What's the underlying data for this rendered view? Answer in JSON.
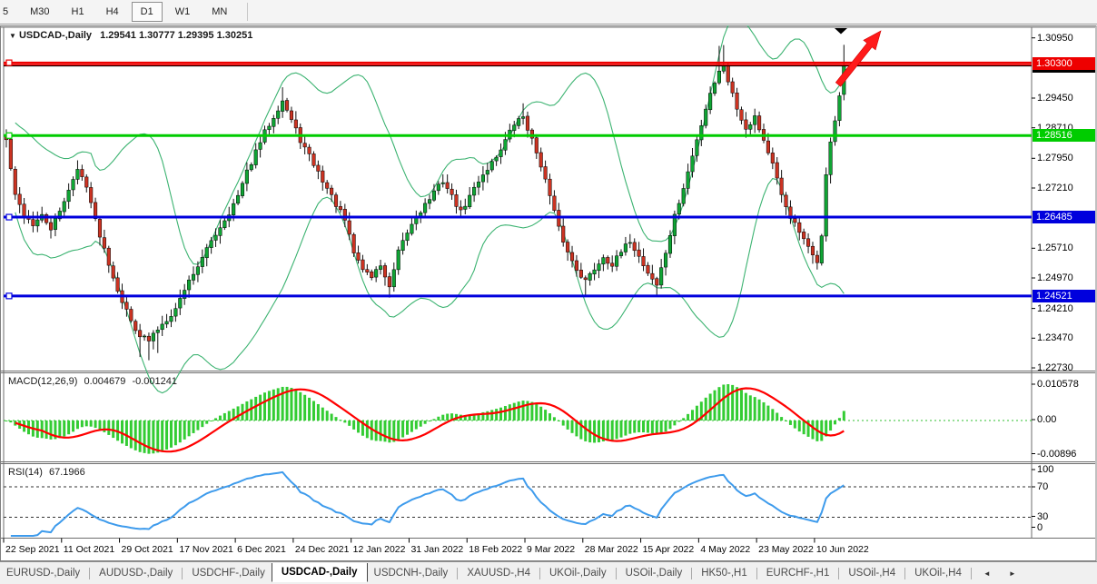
{
  "toolbar": {
    "timeframes": [
      {
        "label": "5",
        "active": false
      },
      {
        "label": "M30",
        "active": false
      },
      {
        "label": "H1",
        "active": false
      },
      {
        "label": "H4",
        "active": false
      },
      {
        "label": "D1",
        "active": true
      },
      {
        "label": "W1",
        "active": false
      },
      {
        "label": "MN",
        "active": false
      }
    ]
  },
  "chart": {
    "title": "USDCAD-,Daily",
    "ohlc_text": "1.29541 1.30777 1.29395 1.30251",
    "icons": {
      "dropdown": "▼",
      "bar_marker": "▼"
    }
  },
  "indicators": {
    "macd": {
      "label": "MACD(12,26,9)",
      "main_value": "0.004679",
      "signal_value": "-0.001241",
      "axis_labels": [
        "0.010578",
        "0.00",
        "-0.00896"
      ]
    },
    "rsi": {
      "label": "RSI(14)",
      "value": "67.1966",
      "axis_labels": [
        "100",
        "70",
        "30",
        "0"
      ],
      "levels": [
        70,
        30
      ]
    }
  },
  "price_axis": {
    "tick_labels": [
      "1.30950",
      "1.29450",
      "1.28710",
      "1.27950",
      "1.27210",
      "1.25710",
      "1.24970",
      "1.24210",
      "1.23470",
      "1.22730"
    ],
    "badges": [
      {
        "text": "1.30251",
        "color": "#000000",
        "z": 1,
        "price": 1.30251
      },
      {
        "text": "1.30300",
        "color": "#EE0000",
        "z": 2,
        "price": 1.303
      },
      {
        "text": "1.28516",
        "color": "#00CC00",
        "z": 2,
        "price": 1.28516
      },
      {
        "text": "1.26485",
        "color": "#0000DD",
        "z": 2,
        "price": 1.26485
      },
      {
        "text": "1.24521",
        "color": "#0000DD",
        "z": 2,
        "price": 1.24521
      }
    ]
  },
  "chart_data": {
    "type": "candlestick",
    "symbol": "USDCAD",
    "timeframe": "Daily",
    "bars_total": 189,
    "bars_per_label": 13,
    "y_range": [
      1.2243,
      1.312
    ],
    "grid": false,
    "x_labels": [
      "22 Sep 2021",
      "11 Oct 2021",
      "29 Oct 2021",
      "17 Nov 2021",
      "6 Dec 2021",
      "24 Dec 2021",
      "12 Jan 2022",
      "31 Jan 2022",
      "18 Feb 2022",
      "9 Mar 2022",
      "28 Mar 2022",
      "15 Apr 2022",
      "4 May 2022",
      "23 May 2022",
      "10 Jun 2022"
    ],
    "last_bar": {
      "open": 1.29541,
      "high": 1.30777,
      "low": 1.29395,
      "close": 1.30251
    },
    "close_keyframes": [
      [
        0,
        1.284
      ],
      [
        2,
        1.27
      ],
      [
        4,
        1.2655
      ],
      [
        6,
        1.263
      ],
      [
        8,
        1.265
      ],
      [
        10,
        1.262
      ],
      [
        12,
        1.266
      ],
      [
        14,
        1.272
      ],
      [
        16,
        1.2765
      ],
      [
        18,
        1.273
      ],
      [
        20,
        1.264
      ],
      [
        22,
        1.257
      ],
      [
        24,
        1.25
      ],
      [
        26,
        1.244
      ],
      [
        28,
        1.239
      ],
      [
        30,
        1.2355
      ],
      [
        32,
        1.234
      ],
      [
        34,
        1.237
      ],
      [
        36,
        1.2395
      ],
      [
        38,
        1.242
      ],
      [
        40,
        1.247
      ],
      [
        42,
        1.251
      ],
      [
        44,
        1.2545
      ],
      [
        46,
        1.259
      ],
      [
        48,
        1.2625
      ],
      [
        50,
        1.266
      ],
      [
        52,
        1.27
      ],
      [
        54,
        1.276
      ],
      [
        56,
        1.281
      ],
      [
        58,
        1.286
      ],
      [
        60,
        1.29
      ],
      [
        62,
        1.294
      ],
      [
        64,
        1.289
      ],
      [
        66,
        1.284
      ],
      [
        68,
        1.28
      ],
      [
        70,
        1.276
      ],
      [
        72,
        1.272
      ],
      [
        74,
        1.268
      ],
      [
        76,
        1.264
      ],
      [
        78,
        1.256
      ],
      [
        80,
        1.252
      ],
      [
        82,
        1.25
      ],
      [
        84,
        1.253
      ],
      [
        86,
        1.247
      ],
      [
        88,
        1.256
      ],
      [
        90,
        1.261
      ],
      [
        92,
        1.265
      ],
      [
        94,
        1.268
      ],
      [
        96,
        1.271
      ],
      [
        98,
        1.274
      ],
      [
        100,
        1.27
      ],
      [
        102,
        1.266
      ],
      [
        104,
        1.27
      ],
      [
        106,
        1.274
      ],
      [
        108,
        1.277
      ],
      [
        110,
        1.28
      ],
      [
        112,
        1.284
      ],
      [
        114,
        1.288
      ],
      [
        116,
        1.29
      ],
      [
        118,
        1.284
      ],
      [
        120,
        1.278
      ],
      [
        122,
        1.27
      ],
      [
        124,
        1.262
      ],
      [
        126,
        1.256
      ],
      [
        128,
        1.252
      ],
      [
        130,
        1.249
      ],
      [
        132,
        1.252
      ],
      [
        134,
        1.255
      ],
      [
        136,
        1.253
      ],
      [
        138,
        1.256
      ],
      [
        140,
        1.259
      ],
      [
        142,
        1.255
      ],
      [
        144,
        1.251
      ],
      [
        146,
        1.248
      ],
      [
        148,
        1.256
      ],
      [
        150,
        1.265
      ],
      [
        152,
        1.272
      ],
      [
        154,
        1.28
      ],
      [
        156,
        1.288
      ],
      [
        158,
        1.296
      ],
      [
        160,
        1.301
      ],
      [
        161,
        1.303
      ],
      [
        162,
        1.299
      ],
      [
        164,
        1.292
      ],
      [
        166,
        1.287
      ],
      [
        168,
        1.29
      ],
      [
        170,
        1.284
      ],
      [
        172,
        1.278
      ],
      [
        174,
        1.27
      ],
      [
        176,
        1.265
      ],
      [
        178,
        1.261
      ],
      [
        180,
        1.257
      ],
      [
        182,
        1.254
      ],
      [
        183,
        1.26
      ],
      [
        184,
        1.275
      ],
      [
        185,
        1.284
      ],
      [
        186,
        1.289
      ],
      [
        187,
        1.295
      ],
      [
        188,
        1.30251
      ]
    ],
    "special_wicks": [
      {
        "bar": 16,
        "high": 1.279
      },
      {
        "bar": 30,
        "low": 1.23
      },
      {
        "bar": 32,
        "low": 1.2292
      },
      {
        "bar": 34,
        "low": 1.231
      },
      {
        "bar": 62,
        "high": 1.2972
      },
      {
        "bar": 86,
        "low": 1.2448
      },
      {
        "bar": 116,
        "high": 1.2932
      },
      {
        "bar": 130,
        "low": 1.2452
      },
      {
        "bar": 146,
        "low": 1.2455
      },
      {
        "bar": 160,
        "high": 1.3075
      },
      {
        "bar": 161,
        "high": 1.3077
      },
      {
        "bar": 182,
        "low": 1.2518
      }
    ],
    "hlines": [
      {
        "price": 1.3033,
        "color": "#EE0000",
        "width": 2.4,
        "name": "resistance-red-line-upper",
        "handle": true
      },
      {
        "price": 1.3027,
        "color": "#EE0000",
        "width": 2.4,
        "name": "resistance-red-line-lower",
        "handle": false
      },
      {
        "price": 1.30251,
        "color": "#000000",
        "width": 1,
        "name": "current-price-line",
        "handle": false
      },
      {
        "price": 1.28516,
        "color": "#00CC00",
        "width": 3,
        "name": "level-green-line",
        "handle": true
      },
      {
        "price": 1.26485,
        "color": "#0000DD",
        "width": 3,
        "name": "support-blue-line-1",
        "handle": true
      },
      {
        "price": 1.24521,
        "color": "#0000DD",
        "width": 3,
        "name": "support-blue-line-2",
        "handle": true
      }
    ],
    "bollinger": {
      "period": 20,
      "deviation": 2,
      "color": "#3CB371"
    },
    "macd": {
      "fast": 12,
      "slow": 26,
      "signal": 9,
      "hist_color": "#33CC33",
      "signal_color": "#FF0000",
      "axis_max": 0.010578,
      "axis_min": -0.00896
    },
    "rsi": {
      "period": 14,
      "color": "#3E9BEC",
      "levels": [
        70,
        30
      ]
    },
    "candle_up_color": "#0FA534",
    "candle_down_color": "#CC3322",
    "wick_color": "#111111",
    "arrow_color": "#FF1A1A"
  },
  "tabs": {
    "items": [
      {
        "label": "EURUSD-,Daily",
        "active": false
      },
      {
        "label": "AUDUSD-,Daily",
        "active": false
      },
      {
        "label": "USDCHF-,Daily",
        "active": false
      },
      {
        "label": "USDCAD-,Daily",
        "active": true
      },
      {
        "label": "USDCNH-,Daily",
        "active": false
      },
      {
        "label": "XAUUSD-,H4",
        "active": false
      },
      {
        "label": "UKOil-,Daily",
        "active": false
      },
      {
        "label": "USOil-,Daily",
        "active": false
      },
      {
        "label": "HK50-,H1",
        "active": false
      },
      {
        "label": "EURCHF-,H1",
        "active": false
      },
      {
        "label": "USOil-,H4",
        "active": false
      },
      {
        "label": "UKOil-,H4",
        "active": false
      }
    ],
    "scroll_left": "◄",
    "scroll_right": "►"
  }
}
